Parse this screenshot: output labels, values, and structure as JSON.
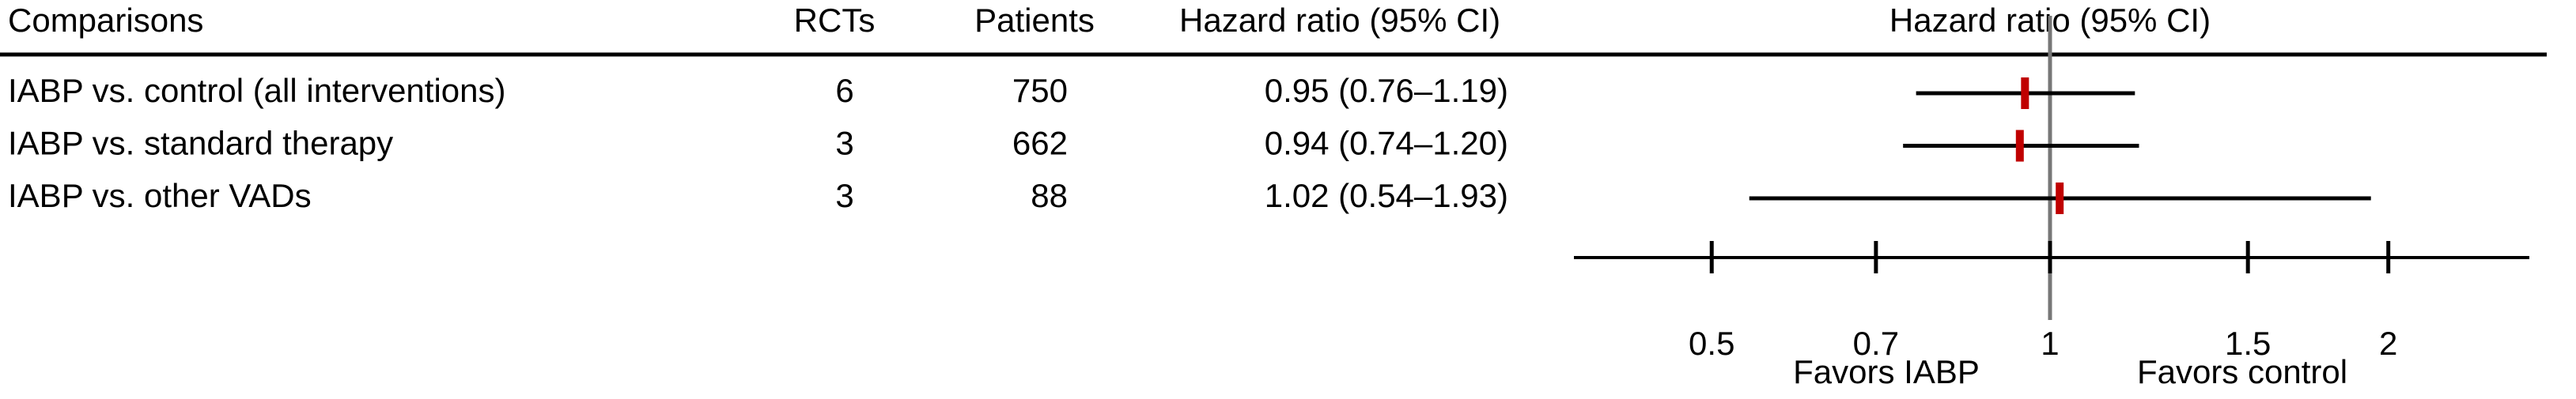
{
  "chart_data": {
    "type": "forest",
    "columns": [
      "Comparisons",
      "RCTs",
      "Patients",
      "Hazard ratio (95% CI)"
    ],
    "plot_title": "Hazard ratio (95% CI)",
    "categories": [
      "IABP vs. control (all interventions)",
      "IABP vs. standard therapy",
      "IABP vs. other VADs"
    ],
    "rcts": [
      6,
      3,
      3
    ],
    "patients": [
      750,
      662,
      88
    ],
    "values": [
      0.95,
      0.94,
      1.02
    ],
    "lower": [
      0.76,
      0.74,
      0.54
    ],
    "upper": [
      1.19,
      1.2,
      1.93
    ],
    "value_labels": [
      "0.95 (0.76–1.19)",
      "0.94 (0.74–1.20)",
      "1.02 (0.54–1.93)"
    ],
    "xscale": "log",
    "xlim": [
      0.377,
      2.67
    ],
    "xticks": [
      0.5,
      0.7,
      1,
      1.5,
      2
    ],
    "reference": 1,
    "annotations": [
      "Favors IABP",
      "Favors control"
    ],
    "color": "#c00000",
    "line_color": "#000000",
    "reference_color": "#777777"
  }
}
